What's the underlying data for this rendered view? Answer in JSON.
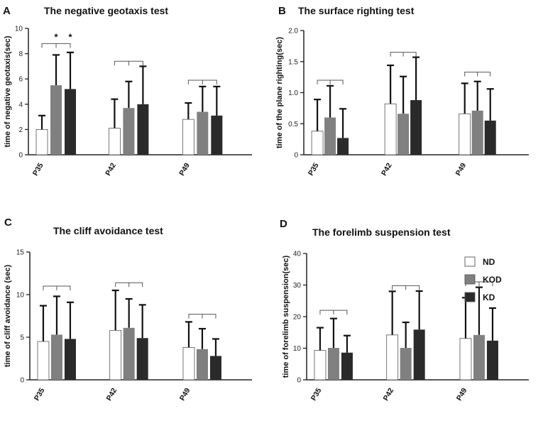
{
  "legend": [
    {
      "name": "ND",
      "color": "#ffffff"
    },
    {
      "name": "KOD",
      "color": "#808080"
    },
    {
      "name": "KD",
      "color": "#2a2a2a"
    }
  ],
  "chart_data": [
    {
      "type": "bar",
      "letter": "A",
      "title": "The negative geotaxis test",
      "ylabel": "time of negative geotaxis(sec)",
      "categories": [
        "P35",
        "P42",
        "P49"
      ],
      "ylim": [
        0,
        10
      ],
      "yticks": [
        "0",
        "2",
        "4",
        "6",
        "8",
        "10"
      ],
      "tick_values": [
        0,
        2,
        4,
        6,
        8,
        10
      ],
      "series": [
        {
          "name": "ND",
          "values": [
            2.0,
            2.1,
            2.8
          ],
          "errors": [
            1.1,
            2.3,
            1.3
          ]
        },
        {
          "name": "KOD",
          "values": [
            5.5,
            3.7,
            3.4
          ],
          "errors": [
            2.4,
            2.1,
            2.0
          ]
        },
        {
          "name": "KD",
          "values": [
            5.2,
            4.0,
            3.1
          ],
          "errors": [
            2.9,
            3.0,
            2.3
          ]
        }
      ],
      "bracket_levels": [
        8.8,
        7.4,
        5.9
      ],
      "significance": [
        {
          "category": 0,
          "series": 1,
          "label": "*"
        },
        {
          "category": 0,
          "series": 2,
          "label": "*"
        }
      ]
    },
    {
      "type": "bar",
      "letter": "B",
      "title": "The surface righting test",
      "ylabel": "time of  the plane righting(sec)",
      "categories": [
        "P35",
        "P42",
        "P49"
      ],
      "ylim": [
        0,
        2.0
      ],
      "yticks": [
        "0",
        "0.5",
        "1.0",
        "1.5",
        "2.0"
      ],
      "tick_values": [
        0,
        0.5,
        1.0,
        1.5,
        2.0
      ],
      "series": [
        {
          "name": "ND",
          "values": [
            0.38,
            0.82,
            0.66
          ],
          "errors": [
            0.51,
            0.62,
            0.49
          ]
        },
        {
          "name": "KOD",
          "values": [
            0.6,
            0.66,
            0.71
          ],
          "errors": [
            0.51,
            0.6,
            0.47
          ]
        },
        {
          "name": "KD",
          "values": [
            0.27,
            0.88,
            0.55
          ],
          "errors": [
            0.47,
            0.69,
            0.51
          ]
        }
      ],
      "bracket_levels": [
        1.2,
        1.65,
        1.33
      ],
      "significance": []
    },
    {
      "type": "bar",
      "letter": "C",
      "title": "The cliff avoidance test",
      "ylabel": "time of cliff avoidance (sec)",
      "categories": [
        "P35",
        "P42",
        "P49"
      ],
      "ylim": [
        0,
        15
      ],
      "yticks": [
        "0",
        "5",
        "10",
        "15"
      ],
      "tick_values": [
        0,
        5,
        10,
        15
      ],
      "series": [
        {
          "name": "ND",
          "values": [
            4.5,
            5.8,
            3.8
          ],
          "errors": [
            4.2,
            4.7,
            3.0
          ]
        },
        {
          "name": "KOD",
          "values": [
            5.3,
            6.1,
            3.6
          ],
          "errors": [
            4.5,
            3.4,
            2.4
          ]
        },
        {
          "name": "KD",
          "values": [
            4.8,
            4.9,
            2.8
          ],
          "errors": [
            4.3,
            3.9,
            2.0
          ]
        }
      ],
      "bracket_levels": [
        11.0,
        11.4,
        7.7
      ],
      "significance": []
    },
    {
      "type": "bar",
      "letter": "D",
      "title": "The forelimb suspension test",
      "ylabel": "time of forelimb suspension(sec)",
      "categories": [
        "P35",
        "P42",
        "P49"
      ],
      "ylim": [
        0,
        40
      ],
      "yticks": [
        "0",
        "10",
        "20",
        "30",
        "40"
      ],
      "tick_values": [
        0,
        10,
        20,
        30,
        40
      ],
      "series": [
        {
          "name": "ND",
          "values": [
            9.3,
            14.2,
            13.1
          ],
          "errors": [
            7.2,
            13.8,
            12.9
          ]
        },
        {
          "name": "KOD",
          "values": [
            10.1,
            10.1,
            14.2
          ],
          "errors": [
            9.3,
            8.1,
            15.1
          ]
        },
        {
          "name": "KD",
          "values": [
            8.6,
            15.9,
            12.4
          ],
          "errors": [
            5.4,
            12.2,
            10.3
          ]
        }
      ],
      "bracket_levels": [
        22.0,
        29.8,
        31.0
      ],
      "significance": []
    }
  ]
}
